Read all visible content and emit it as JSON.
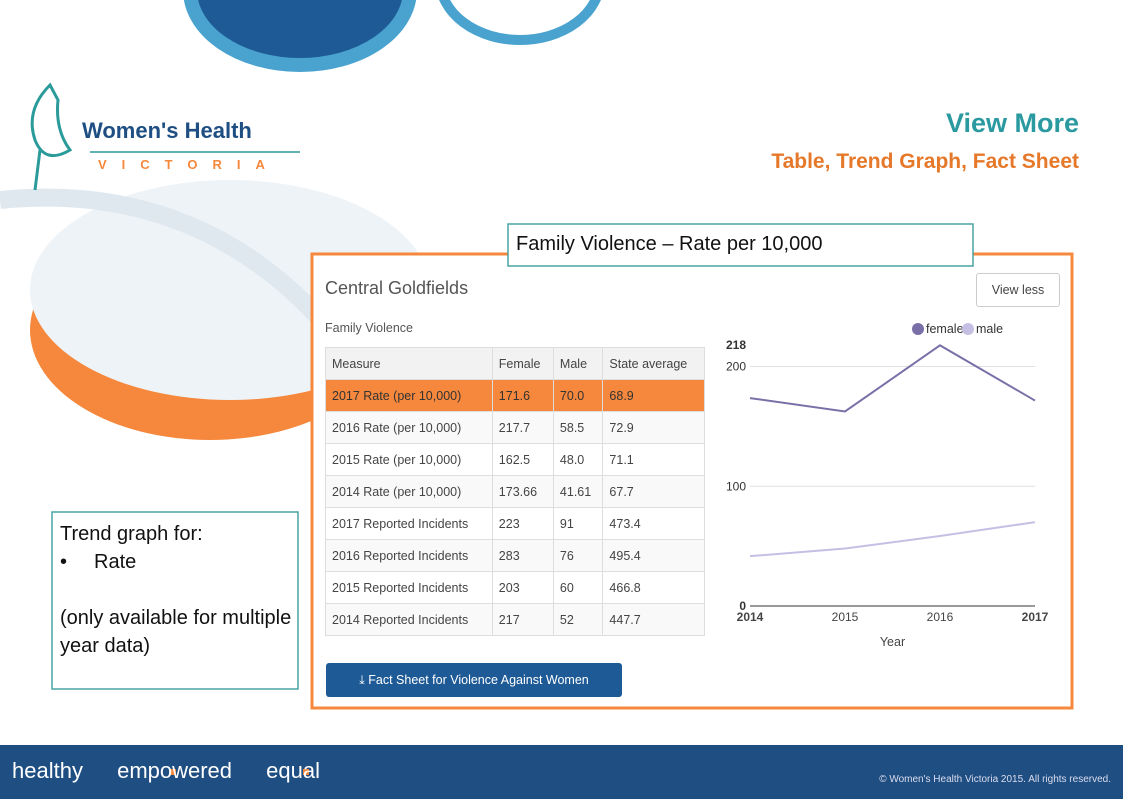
{
  "logo": {
    "name": "Women's Health",
    "region": "VICTORIA"
  },
  "header": {
    "title": "View More",
    "subtitle": "Table, Trend Graph, Fact Sheet"
  },
  "callout": "Family Violence – Rate per 10,000",
  "panel": {
    "title": "Central Goldfields",
    "button": "View less",
    "section": "Family Violence",
    "download_button": "Fact Sheet for Violence Against Women"
  },
  "table": {
    "columns": [
      "Measure",
      "Female",
      "Male",
      "State average"
    ],
    "rows": [
      [
        "2017 Rate (per 10,000)",
        "171.6",
        "70.0",
        "68.9"
      ],
      [
        "2016 Rate (per 10,000)",
        "217.7",
        "58.5",
        "72.9"
      ],
      [
        "2015 Rate (per 10,000)",
        "162.5",
        "48.0",
        "71.1"
      ],
      [
        "2014 Rate (per 10,000)",
        "173.66",
        "41.61",
        "67.7"
      ],
      [
        "2017 Reported Incidents",
        "223",
        "91",
        "473.4"
      ],
      [
        "2016 Reported Incidents",
        "283",
        "76",
        "495.4"
      ],
      [
        "2015 Reported Incidents",
        "203",
        "60",
        "466.8"
      ],
      [
        "2014 Reported Incidents",
        "217",
        "52",
        "447.7"
      ]
    ]
  },
  "chart_data": {
    "type": "line",
    "xlabel": "Year",
    "x": [
      2014,
      2015,
      2016,
      2017
    ],
    "xlim": [
      2014,
      2017
    ],
    "xticks": [
      2014,
      2015,
      2016,
      2017
    ],
    "ylim": [
      0,
      218
    ],
    "yticks": [
      0,
      100,
      200,
      218
    ],
    "grid": true,
    "legend": "top",
    "series": [
      {
        "name": "female",
        "color": "#7b6fa8",
        "values": [
          173.66,
          162.5,
          217.7,
          171.6
        ]
      },
      {
        "name": "male",
        "color": "#c5bfe3",
        "values": [
          41.61,
          48.0,
          58.5,
          70.0
        ]
      }
    ]
  },
  "note": {
    "heading": "Trend graph for:",
    "bullet": "Rate",
    "detail": "(only available for multiple year data)"
  },
  "footer": {
    "tagline": [
      "healthy",
      "empowered",
      "equal"
    ],
    "copyright": "© Women's Health Victoria 2015. All rights reserved."
  }
}
